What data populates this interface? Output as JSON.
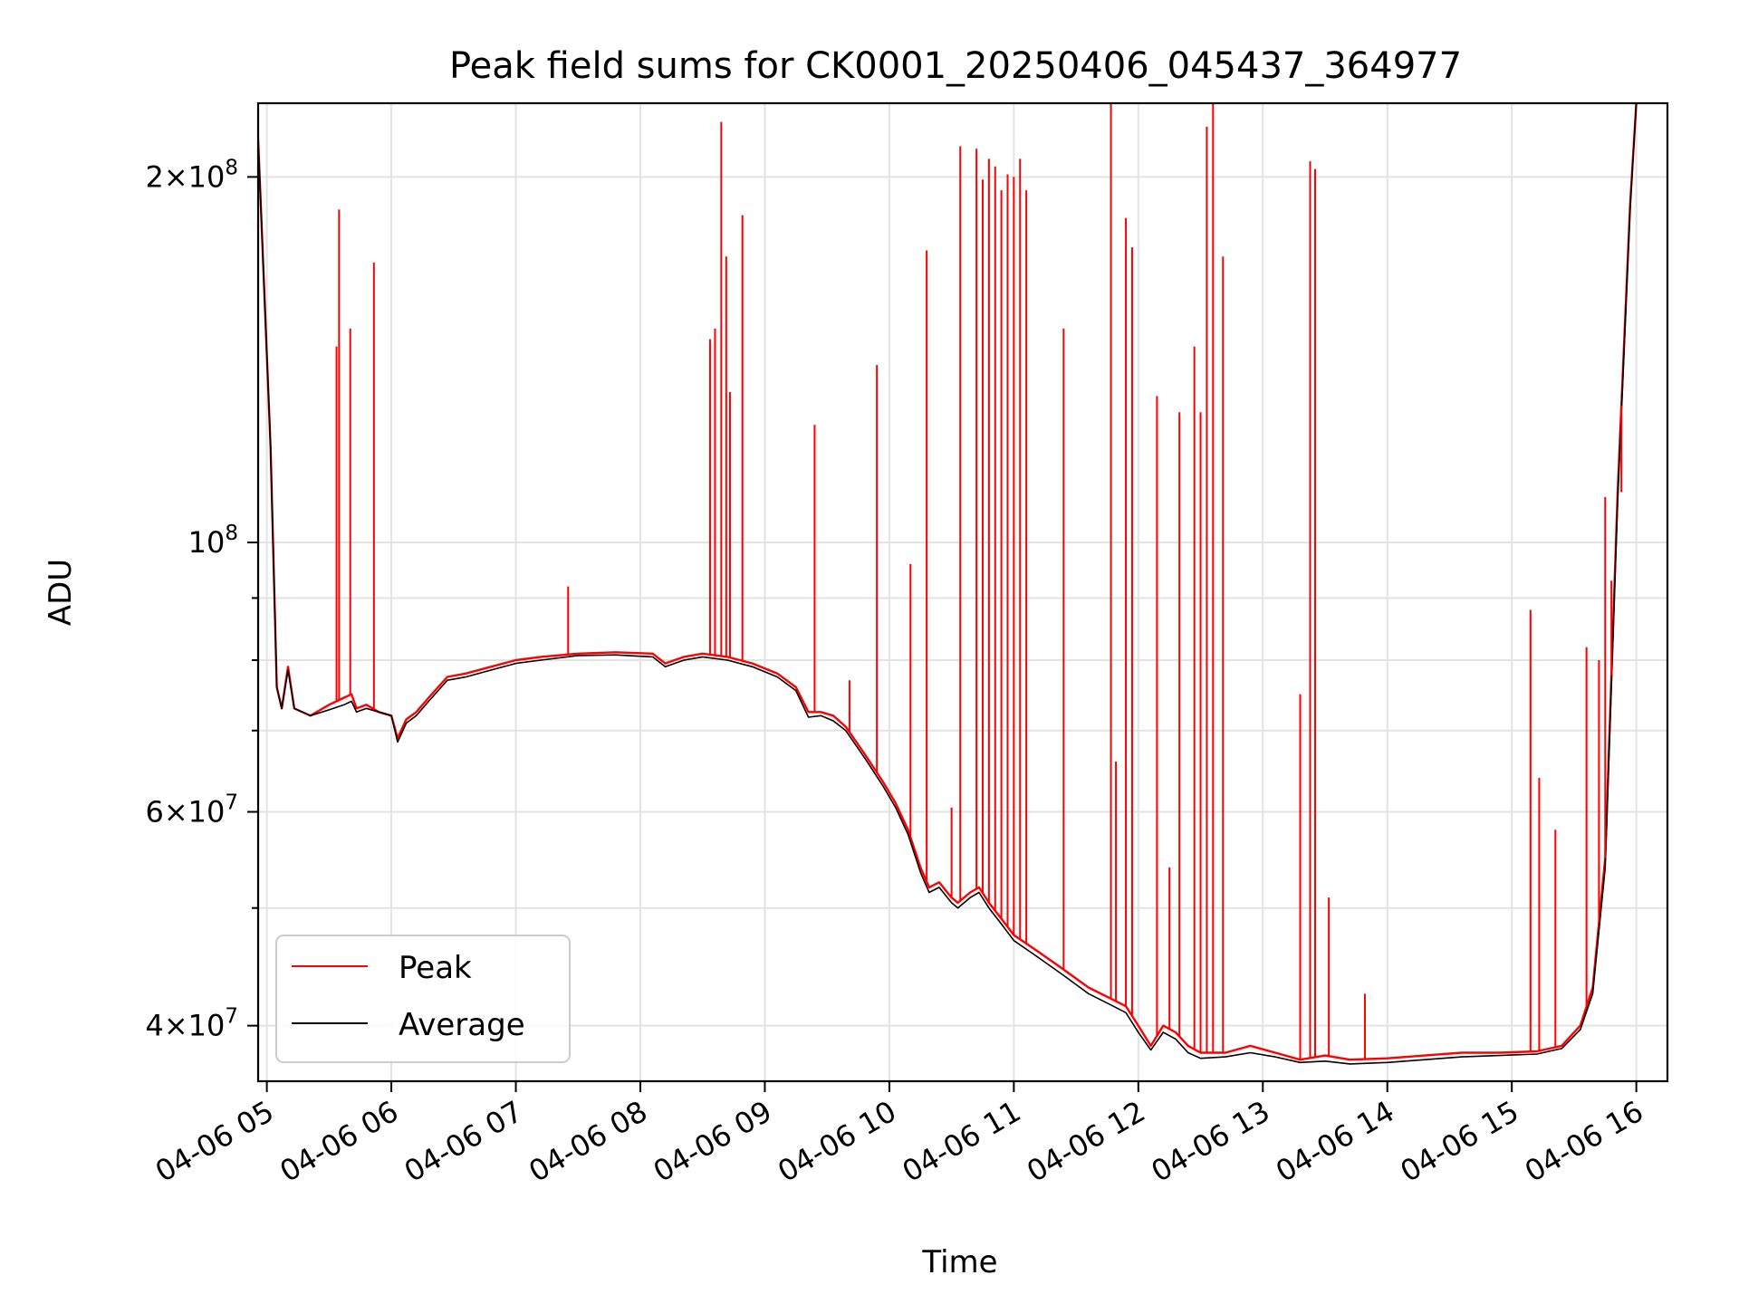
{
  "chart_data": {
    "type": "line",
    "title": "Peak field sums for CK0001_20250406_045437_364977",
    "xlabel": "Time",
    "ylabel": "ADU",
    "yscale": "log",
    "ylim": [
      36000000,
      230000000
    ],
    "xlim_hours": [
      4.93,
      16.25
    ],
    "grid": true,
    "legend_position": "lower-left",
    "x_ticks": [
      {
        "h": 5,
        "label": "04-06 05"
      },
      {
        "h": 6,
        "label": "04-06 06"
      },
      {
        "h": 7,
        "label": "04-06 07"
      },
      {
        "h": 8,
        "label": "04-06 08"
      },
      {
        "h": 9,
        "label": "04-06 09"
      },
      {
        "h": 10,
        "label": "04-06 10"
      },
      {
        "h": 11,
        "label": "04-06 11"
      },
      {
        "h": 12,
        "label": "04-06 12"
      },
      {
        "h": 13,
        "label": "04-06 13"
      },
      {
        "h": 14,
        "label": "04-06 14"
      },
      {
        "h": 15,
        "label": "04-06 15"
      },
      {
        "h": 16,
        "label": "04-06 16"
      }
    ],
    "y_major_ticks": [
      {
        "value": 40000000,
        "mant": "4",
        "exp": "7"
      },
      {
        "value": 60000000,
        "mant": "6",
        "exp": "7"
      },
      {
        "value": 100000000,
        "mant": "",
        "exp": "8"
      },
      {
        "value": 200000000,
        "mant": "2",
        "exp": "8"
      }
    ],
    "y_minor_values": [
      50000000,
      70000000,
      80000000,
      90000000
    ],
    "series": [
      {
        "name": "Peak",
        "color": "#ff0000",
        "points": [
          [
            4.93,
            215000000
          ],
          [
            5.03,
            120000000
          ],
          [
            5.08,
            76000000
          ],
          [
            5.12,
            73000000
          ],
          [
            5.17,
            79000000
          ],
          [
            5.22,
            73000000
          ],
          [
            5.35,
            72000000
          ],
          [
            5.5,
            73500000
          ],
          [
            5.62,
            74500000
          ],
          [
            5.68,
            75000000
          ],
          [
            5.72,
            73000000
          ],
          [
            5.8,
            73500000
          ],
          [
            5.9,
            72500000
          ],
          [
            6.0,
            72000000
          ],
          [
            6.05,
            69000000
          ],
          [
            6.12,
            71500000
          ],
          [
            6.2,
            72500000
          ],
          [
            6.3,
            74500000
          ],
          [
            6.45,
            77500000
          ],
          [
            6.6,
            78000000
          ],
          [
            6.8,
            79000000
          ],
          [
            7.0,
            80000000
          ],
          [
            7.2,
            80500000
          ],
          [
            7.5,
            81000000
          ],
          [
            7.8,
            81200000
          ],
          [
            8.1,
            81000000
          ],
          [
            8.2,
            79500000
          ],
          [
            8.35,
            80500000
          ],
          [
            8.5,
            81000000
          ],
          [
            8.7,
            80500000
          ],
          [
            8.9,
            79500000
          ],
          [
            9.1,
            78000000
          ],
          [
            9.25,
            76000000
          ],
          [
            9.35,
            72500000
          ],
          [
            9.45,
            72500000
          ],
          [
            9.55,
            72000000
          ],
          [
            9.65,
            70500000
          ],
          [
            9.8,
            67000000
          ],
          [
            9.95,
            63500000
          ],
          [
            10.05,
            61000000
          ],
          [
            10.15,
            58000000
          ],
          [
            10.25,
            54000000
          ],
          [
            10.32,
            52000000
          ],
          [
            10.4,
            52500000
          ],
          [
            10.5,
            51000000
          ],
          [
            10.55,
            50500000
          ],
          [
            10.65,
            51500000
          ],
          [
            10.72,
            52000000
          ],
          [
            10.8,
            50500000
          ],
          [
            10.9,
            49000000
          ],
          [
            11.0,
            47500000
          ],
          [
            11.2,
            46000000
          ],
          [
            11.4,
            44500000
          ],
          [
            11.6,
            43000000
          ],
          [
            11.8,
            42000000
          ],
          [
            11.9,
            41500000
          ],
          [
            12.0,
            40000000
          ],
          [
            12.1,
            38500000
          ],
          [
            12.2,
            40000000
          ],
          [
            12.3,
            39500000
          ],
          [
            12.4,
            38500000
          ],
          [
            12.5,
            38000000
          ],
          [
            12.7,
            38000000
          ],
          [
            12.9,
            38500000
          ],
          [
            13.1,
            38000000
          ],
          [
            13.3,
            37500000
          ],
          [
            13.5,
            37800000
          ],
          [
            13.7,
            37500000
          ],
          [
            14.0,
            37600000
          ],
          [
            14.3,
            37800000
          ],
          [
            14.6,
            38000000
          ],
          [
            14.9,
            38000000
          ],
          [
            15.2,
            38100000
          ],
          [
            15.4,
            38500000
          ],
          [
            15.55,
            40000000
          ],
          [
            15.65,
            43000000
          ],
          [
            15.75,
            55000000
          ],
          [
            15.85,
            110000000
          ],
          [
            15.95,
            190000000
          ],
          [
            16.0,
            230000000
          ]
        ]
      },
      {
        "name": "Average",
        "color": "#000000",
        "points": [
          [
            4.93,
            215000000
          ],
          [
            5.03,
            120000000
          ],
          [
            5.08,
            76000000
          ],
          [
            5.12,
            73000000
          ],
          [
            5.17,
            78500000
          ],
          [
            5.22,
            73000000
          ],
          [
            5.35,
            72000000
          ],
          [
            5.5,
            72800000
          ],
          [
            5.62,
            73500000
          ],
          [
            5.68,
            74000000
          ],
          [
            5.72,
            72500000
          ],
          [
            5.8,
            73000000
          ],
          [
            5.9,
            72500000
          ],
          [
            6.0,
            72000000
          ],
          [
            6.05,
            68500000
          ],
          [
            6.12,
            71000000
          ],
          [
            6.2,
            72000000
          ],
          [
            6.3,
            74000000
          ],
          [
            6.45,
            77000000
          ],
          [
            6.6,
            77500000
          ],
          [
            6.8,
            78500000
          ],
          [
            7.0,
            79500000
          ],
          [
            7.2,
            80000000
          ],
          [
            7.5,
            80700000
          ],
          [
            7.8,
            80800000
          ],
          [
            8.1,
            80500000
          ],
          [
            8.2,
            79000000
          ],
          [
            8.35,
            80000000
          ],
          [
            8.5,
            80500000
          ],
          [
            8.7,
            80000000
          ],
          [
            8.9,
            79000000
          ],
          [
            9.1,
            77500000
          ],
          [
            9.25,
            75500000
          ],
          [
            9.35,
            71800000
          ],
          [
            9.45,
            72000000
          ],
          [
            9.55,
            71300000
          ],
          [
            9.65,
            70000000
          ],
          [
            9.8,
            66500000
          ],
          [
            9.95,
            63000000
          ],
          [
            10.05,
            60500000
          ],
          [
            10.15,
            57500000
          ],
          [
            10.25,
            53500000
          ],
          [
            10.32,
            51500000
          ],
          [
            10.4,
            52000000
          ],
          [
            10.5,
            50500000
          ],
          [
            10.55,
            50000000
          ],
          [
            10.65,
            51000000
          ],
          [
            10.72,
            51500000
          ],
          [
            10.8,
            50000000
          ],
          [
            10.9,
            48500000
          ],
          [
            11.0,
            47000000
          ],
          [
            11.2,
            45500000
          ],
          [
            11.4,
            44000000
          ],
          [
            11.6,
            42500000
          ],
          [
            11.8,
            41500000
          ],
          [
            11.9,
            41000000
          ],
          [
            12.0,
            39500000
          ],
          [
            12.1,
            38200000
          ],
          [
            12.2,
            39500000
          ],
          [
            12.3,
            39000000
          ],
          [
            12.4,
            38000000
          ],
          [
            12.5,
            37600000
          ],
          [
            12.7,
            37700000
          ],
          [
            12.9,
            38000000
          ],
          [
            13.1,
            37700000
          ],
          [
            13.3,
            37300000
          ],
          [
            13.5,
            37400000
          ],
          [
            13.7,
            37200000
          ],
          [
            14.0,
            37300000
          ],
          [
            14.3,
            37500000
          ],
          [
            14.6,
            37700000
          ],
          [
            14.9,
            37800000
          ],
          [
            15.2,
            37900000
          ],
          [
            15.4,
            38300000
          ],
          [
            15.55,
            39700000
          ],
          [
            15.65,
            42500000
          ],
          [
            15.75,
            54000000
          ],
          [
            15.85,
            108000000
          ],
          [
            15.95,
            188000000
          ],
          [
            16.0,
            230000000
          ]
        ]
      }
    ],
    "peak_spikes": [
      [
        5.56,
        145000000
      ],
      [
        5.58,
        188000000
      ],
      [
        5.67,
        150000000
      ],
      [
        5.86,
        170000000
      ],
      [
        7.42,
        92000000
      ],
      [
        8.56,
        147000000
      ],
      [
        8.6,
        150000000
      ],
      [
        8.65,
        222000000
      ],
      [
        8.69,
        172000000
      ],
      [
        8.72,
        133000000
      ],
      [
        8.82,
        186000000
      ],
      [
        9.4,
        125000000
      ],
      [
        9.68,
        77000000
      ],
      [
        9.9,
        140000000
      ],
      [
        10.17,
        96000000
      ],
      [
        10.3,
        174000000
      ],
      [
        10.5,
        60500000
      ],
      [
        10.57,
        212000000
      ],
      [
        10.7,
        211000000
      ],
      [
        10.75,
        199000000
      ],
      [
        10.8,
        207000000
      ],
      [
        10.85,
        204000000
      ],
      [
        10.9,
        195000000
      ],
      [
        10.95,
        201000000
      ],
      [
        11.0,
        200000000
      ],
      [
        11.05,
        207000000
      ],
      [
        11.1,
        195000000
      ],
      [
        11.4,
        150000000
      ],
      [
        11.78,
        230000000
      ],
      [
        11.82,
        66000000
      ],
      [
        11.9,
        185000000
      ],
      [
        11.95,
        175000000
      ],
      [
        12.15,
        132000000
      ],
      [
        12.25,
        54000000
      ],
      [
        12.33,
        128000000
      ],
      [
        12.45,
        145000000
      ],
      [
        12.5,
        128000000
      ],
      [
        12.55,
        220000000
      ],
      [
        12.6,
        230000000
      ],
      [
        12.68,
        172000000
      ],
      [
        13.3,
        75000000
      ],
      [
        13.38,
        206000000
      ],
      [
        13.42,
        203000000
      ],
      [
        13.53,
        51000000
      ],
      [
        13.82,
        42500000
      ],
      [
        15.15,
        88000000
      ],
      [
        15.22,
        64000000
      ],
      [
        15.35,
        58000000
      ],
      [
        15.6,
        82000000
      ],
      [
        15.7,
        80000000
      ],
      [
        15.75,
        109000000
      ],
      [
        15.8,
        93000000
      ],
      [
        15.88,
        110000000
      ]
    ]
  }
}
